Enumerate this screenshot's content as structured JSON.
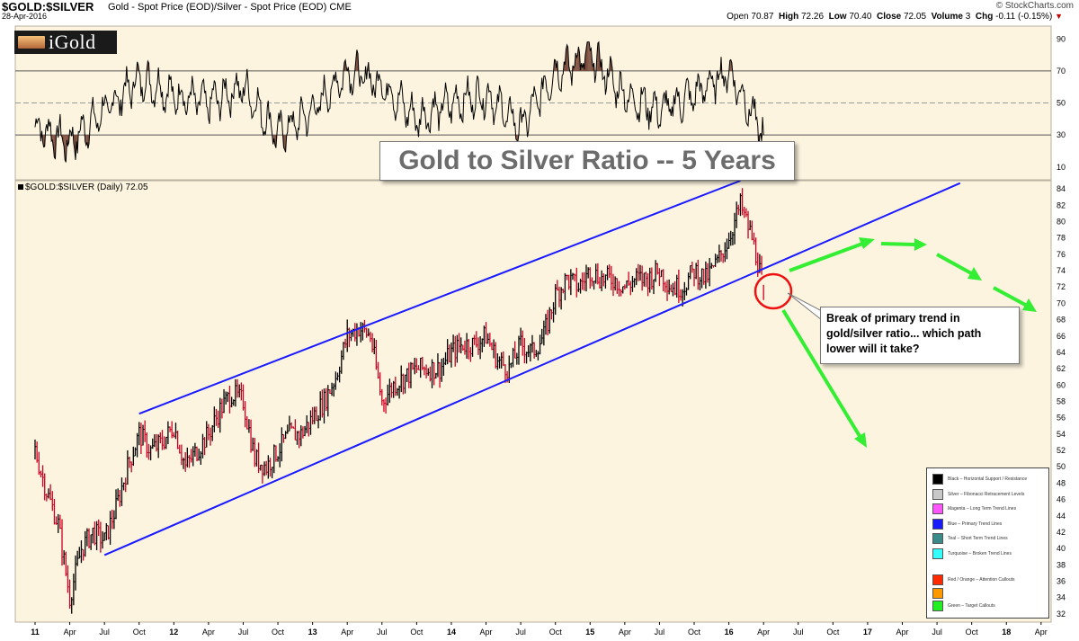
{
  "header": {
    "symbol": "$GOLD:$SILVER",
    "description": "Gold - Spot Price (EOD)/Silver - Spot Price (EOD)  CME",
    "date": "28-Apr-2016",
    "brand": "© StockCharts.com",
    "open_label": "Open",
    "open": "70.87",
    "high_label": "High",
    "high": "72.26",
    "low_label": "Low",
    "low": "70.40",
    "close_label": "Close",
    "close": "72.05",
    "volume_label": "Volume",
    "volume": "3",
    "chg_label": "Chg",
    "chg": "-0.11 (-0.15%)"
  },
  "logo": {
    "text": "iGold"
  },
  "title_box": "Gold to Silver Ratio -- 5 Years",
  "price_label": "$GOLD:$SILVER (Daily) 72.05",
  "callout": "Break of primary trend in gold/silver ratio... which path lower will it take?",
  "legend": [
    {
      "label": "Black – Horizontal Support / Resistance",
      "color": "#000000"
    },
    {
      "label": "Silver – Fibonacci Retracement Levels",
      "color": "#c8c8c8"
    },
    {
      "label": "Magenta – Long Term Trend Lines",
      "color": "#ff55ff"
    },
    {
      "label": "Blue – Primary Trend Lines",
      "color": "#1a1aff"
    },
    {
      "label": "Teal – Short Term Trend Lines",
      "color": "#3a8a8a"
    },
    {
      "label": "Turquoise – Broken Trend Lines",
      "color": "#33ffff"
    },
    {
      "label": "Red / Orange – Attention Callouts",
      "color": "#ff2a00",
      "color2": "#ff9900"
    },
    {
      "label": "Green – Target Callouts",
      "color": "#22ee22"
    }
  ],
  "colors": {
    "background": "#fcf4de",
    "trend_line": "#1a1aff",
    "candle_up": "#000000",
    "candle_down": "#cc0022",
    "target_arrow": "#33ee33",
    "attention_circle": "#ee1111",
    "rsi_fill": "#7a4a3a"
  },
  "chart_data": [
    {
      "type": "line",
      "panel": "indicator",
      "y_ticks": [
        10,
        30,
        50,
        70,
        90
      ],
      "ylim": [
        2,
        98
      ],
      "overbought": 70,
      "oversold": 30,
      "x": [
        "2011-01",
        "2011-04",
        "2011-07",
        "2011-10",
        "2012-01",
        "2012-04",
        "2012-07",
        "2012-10",
        "2013-01",
        "2013-04",
        "2013-07",
        "2013-10",
        "2014-01",
        "2014-04",
        "2014-07",
        "2014-10",
        "2015-01",
        "2015-04",
        "2015-07",
        "2015-10",
        "2016-01",
        "2016-04"
      ],
      "values": [
        35,
        25,
        45,
        65,
        55,
        50,
        60,
        30,
        45,
        70,
        62,
        40,
        50,
        55,
        35,
        70,
        80,
        55,
        45,
        55,
        70,
        30
      ]
    },
    {
      "type": "line",
      "panel": "price",
      "x_ticks": [
        "11",
        "Apr",
        "Jul",
        "Oct",
        "12",
        "Apr",
        "Jul",
        "Oct",
        "13",
        "Apr",
        "Jul",
        "Oct",
        "14",
        "Apr",
        "Jul",
        "Oct",
        "15",
        "Apr",
        "Jul",
        "Oct",
        "16",
        "Apr",
        "Jul",
        "Oct",
        "17",
        "Apr",
        "Jul",
        "Oct",
        "18",
        "Apr"
      ],
      "y_ticks": [
        32,
        34,
        36,
        38,
        40,
        42,
        44,
        46,
        48,
        50,
        52,
        54,
        56,
        58,
        60,
        62,
        64,
        66,
        68,
        70,
        72,
        74,
        76,
        78,
        80,
        82,
        84
      ],
      "ylim": [
        31,
        85
      ],
      "x": [
        "2011-01",
        "2011-02",
        "2011-03",
        "2011-04",
        "2011-05",
        "2011-06",
        "2011-07",
        "2011-08",
        "2011-09",
        "2011-10",
        "2011-11",
        "2011-12",
        "2012-01",
        "2012-02",
        "2012-03",
        "2012-04",
        "2012-05",
        "2012-06",
        "2012-07",
        "2012-08",
        "2012-09",
        "2012-10",
        "2012-11",
        "2012-12",
        "2013-01",
        "2013-02",
        "2013-03",
        "2013-04",
        "2013-05",
        "2013-06",
        "2013-07",
        "2013-08",
        "2013-09",
        "2013-10",
        "2013-11",
        "2013-12",
        "2014-01",
        "2014-02",
        "2014-03",
        "2014-04",
        "2014-05",
        "2014-06",
        "2014-07",
        "2014-08",
        "2014-09",
        "2014-10",
        "2014-11",
        "2014-12",
        "2015-01",
        "2015-02",
        "2015-03",
        "2015-04",
        "2015-05",
        "2015-06",
        "2015-07",
        "2015-08",
        "2015-09",
        "2015-10",
        "2015-11",
        "2015-12",
        "2016-01",
        "2016-02",
        "2016-03",
        "2016-04"
      ],
      "series": [
        {
          "name": "$GOLD:$SILVER",
          "values": [
            52,
            47,
            43,
            34,
            40,
            42,
            41,
            45,
            50,
            54,
            52,
            53,
            55,
            50,
            52,
            54,
            57,
            59,
            58,
            51,
            50,
            52,
            54,
            54,
            56,
            58,
            61,
            66,
            67,
            66,
            58,
            60,
            61,
            62,
            62,
            62,
            64,
            65,
            65,
            66,
            63,
            62,
            65,
            64,
            66,
            71,
            73,
            72,
            74,
            73,
            73,
            72,
            73,
            73,
            74,
            72,
            72,
            74,
            73,
            75,
            78,
            82,
            78,
            72
          ]
        }
      ],
      "trend_lines": [
        {
          "from": [
            "2011-07",
            39.2
          ],
          "to": [
            "2016-02",
            73.0
          ]
        },
        {
          "from": [
            "2011-10",
            56.5
          ],
          "to": [
            "2016-02",
            85.0
          ]
        },
        {
          "from": [
            "2016-02",
            73.0
          ],
          "to": [
            "2017-09",
            84.7
          ]
        }
      ]
    }
  ]
}
